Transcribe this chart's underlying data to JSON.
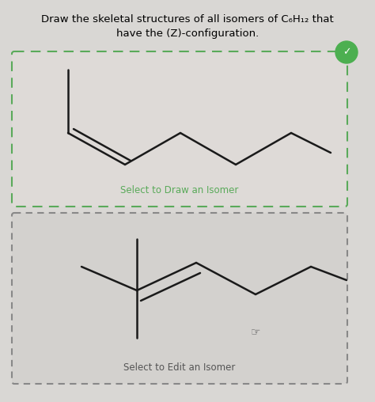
{
  "title_line1": "Draw the skeletal structures of all isomers of C₆H₁₂ that",
  "title_line2": "have the (Z)-configuration.",
  "title_fontsize": 9.5,
  "bg_color": "#d9d7d4",
  "box1_face": "#dedad7",
  "box1_edge": "#5aaa5a",
  "box2_face": "#d3d1ce",
  "box2_edge": "#888888",
  "label1": "Select to Draw an Isomer",
  "label2": "Select to Edit an Isomer",
  "label_color1": "#5aaa5a",
  "label_color2": "#555555",
  "mol_color": "#1a1a1a",
  "check_color": "#4caf50"
}
